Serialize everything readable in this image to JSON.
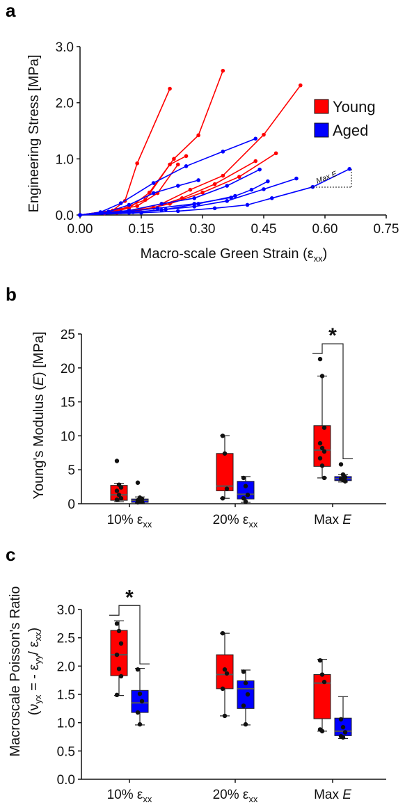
{
  "colors": {
    "young": "#ff0000",
    "aged": "#0000ff",
    "axis": "#111111",
    "median": "#555555"
  },
  "panels": {
    "a": {
      "letter": "a"
    },
    "b": {
      "letter": "b"
    },
    "c": {
      "letter": "c"
    }
  },
  "chart_data": [
    {
      "id": "a",
      "type": "line",
      "xlabel_main": "Macro-scale Green Strain (ε",
      "xlabel_sub": "xx",
      "xlabel_end": ")",
      "ylabel": "Engineering Stress [MPa]",
      "xlim": [
        0,
        0.75
      ],
      "ylim": [
        0,
        3.0
      ],
      "xticks": [
        "0.00",
        "0.15",
        "0.30",
        "0.45",
        "0.60",
        "0.75"
      ],
      "yticks": [
        "0.0",
        "1.0",
        "2.0",
        "3.0"
      ],
      "legend": {
        "position": "top-right",
        "entries": [
          "Young",
          "Aged"
        ]
      },
      "annotation": "Max E",
      "series": [
        {
          "group": "Young",
          "points": [
            [
              0,
              0
            ],
            [
              0.08,
              0.08
            ],
            [
              0.11,
              0.25
            ],
            [
              0.14,
              0.92
            ],
            [
              0.22,
              2.25
            ]
          ]
        },
        {
          "group": "Young",
          "points": [
            [
              0,
              0
            ],
            [
              0.06,
              0.03
            ],
            [
              0.12,
              0.12
            ],
            [
              0.17,
              0.4
            ],
            [
              0.23,
              1.0
            ],
            [
              0.29,
              1.42
            ],
            [
              0.35,
              2.57
            ]
          ]
        },
        {
          "group": "Young",
          "points": [
            [
              0,
              0
            ],
            [
              0.1,
              0.1
            ],
            [
              0.16,
              0.27
            ],
            [
              0.22,
              0.9
            ],
            [
              0.26,
              1.05
            ]
          ]
        },
        {
          "group": "Young",
          "points": [
            [
              0,
              0
            ],
            [
              0.12,
              0.07
            ],
            [
              0.2,
              0.2
            ],
            [
              0.27,
              0.45
            ],
            [
              0.35,
              0.7
            ],
            [
              0.45,
              1.43
            ],
            [
              0.54,
              2.31
            ]
          ]
        },
        {
          "group": "Young",
          "points": [
            [
              0,
              0
            ],
            [
              0.14,
              0.07
            ],
            [
              0.22,
              0.2
            ],
            [
              0.3,
              0.4
            ],
            [
              0.39,
              0.68
            ],
            [
              0.48,
              1.1
            ]
          ]
        },
        {
          "group": "Young",
          "points": [
            [
              0,
              0
            ],
            [
              0.09,
              0.09
            ],
            [
              0.14,
              0.16
            ],
            [
              0.19,
              0.39
            ],
            [
              0.24,
              0.9
            ]
          ]
        },
        {
          "group": "Young",
          "points": [
            [
              0,
              0
            ],
            [
              0.09,
              0.04
            ],
            [
              0.18,
              0.13
            ],
            [
              0.25,
              0.3
            ],
            [
              0.33,
              0.55
            ],
            [
              0.43,
              0.96
            ]
          ]
        },
        {
          "group": "Aged",
          "points": [
            [
              0,
              0
            ],
            [
              0.05,
              0.05
            ],
            [
              0.1,
              0.21
            ],
            [
              0.18,
              0.57
            ],
            [
              0.26,
              0.87
            ],
            [
              0.35,
              1.13
            ],
            [
              0.43,
              1.36
            ]
          ]
        },
        {
          "group": "Aged",
          "points": [
            [
              0,
              0
            ],
            [
              0.07,
              0.06
            ],
            [
              0.12,
              0.18
            ],
            [
              0.18,
              0.39
            ],
            [
              0.24,
              0.52
            ],
            [
              0.29,
              0.62
            ]
          ]
        },
        {
          "group": "Aged",
          "points": [
            [
              0,
              0
            ],
            [
              0.12,
              0.08
            ],
            [
              0.2,
              0.2
            ],
            [
              0.28,
              0.3
            ],
            [
              0.36,
              0.52
            ],
            [
              0.44,
              0.81
            ]
          ]
        },
        {
          "group": "Aged",
          "points": [
            [
              0,
              0
            ],
            [
              0.1,
              0.05
            ],
            [
              0.19,
              0.12
            ],
            [
              0.28,
              0.2
            ],
            [
              0.37,
              0.31
            ],
            [
              0.42,
              0.45
            ],
            [
              0.46,
              0.6
            ]
          ]
        },
        {
          "group": "Aged",
          "points": [
            [
              0,
              0
            ],
            [
              0.12,
              0.04
            ],
            [
              0.2,
              0.09
            ],
            [
              0.28,
              0.15
            ],
            [
              0.36,
              0.25
            ],
            [
              0.45,
              0.46
            ],
            [
              0.53,
              0.65
            ]
          ]
        },
        {
          "group": "Aged",
          "points": [
            [
              0,
              0
            ],
            [
              0.15,
              0.04
            ],
            [
              0.24,
              0.07
            ],
            [
              0.33,
              0.12
            ],
            [
              0.41,
              0.18
            ],
            [
              0.47,
              0.3
            ],
            [
              0.57,
              0.5
            ],
            [
              0.66,
              0.82
            ]
          ]
        },
        {
          "group": "Aged",
          "points": [
            [
              0,
              0
            ],
            [
              0.13,
              0.05
            ],
            [
              0.21,
              0.1
            ],
            [
              0.29,
              0.2
            ],
            [
              0.38,
              0.34
            ]
          ]
        }
      ]
    },
    {
      "id": "b",
      "type": "box",
      "ylabel_pre": "Young's Modulus (",
      "ylabel_var": "E",
      "ylabel_post": ") [MPa]",
      "ylim": [
        0,
        25
      ],
      "yticks": [
        "0",
        "5",
        "10",
        "15",
        "20",
        "25"
      ],
      "groups": [
        {
          "label_main": "10% ε",
          "label_sub": "xx",
          "label_var": "",
          "young": {
            "whisker_low": 0.3,
            "q1": 0.5,
            "median": 1.3,
            "q3": 2.7,
            "whisker_high": 3.0,
            "points": [
              6.3,
              2.8,
              2.4,
              1.9,
              1.3,
              0.8,
              0.6
            ]
          },
          "aged": {
            "whisker_low": 0.1,
            "q1": 0.2,
            "median": 0.5,
            "q3": 0.7,
            "whisker_high": 1.0,
            "points": [
              3.1,
              0.9,
              0.7,
              0.5,
              0.4,
              0.3,
              0.2
            ]
          }
        },
        {
          "label_main": "20% ε",
          "label_sub": "xx",
          "label_var": "",
          "young": {
            "whisker_low": 0.8,
            "q1": 1.9,
            "median": 2.6,
            "q3": 7.4,
            "whisker_high": 10.0,
            "points": [
              10.0,
              7.4,
              2.2,
              0.8
            ]
          },
          "aged": {
            "whisker_low": 0.2,
            "q1": 0.7,
            "median": 1.4,
            "q3": 3.3,
            "whisker_high": 4.0,
            "points": [
              3.8,
              2.6,
              1.3,
              0.8,
              0.3
            ]
          }
        },
        {
          "label_main": "Max ",
          "label_sub": "",
          "label_var": "E",
          "young": {
            "whisker_low": 3.8,
            "q1": 5.5,
            "median": 7.9,
            "q3": 11.5,
            "whisker_high": 18.8,
            "points": [
              21.3,
              18.8,
              11.2,
              8.9,
              8.2,
              7.7,
              6.7,
              5.6,
              3.8
            ]
          },
          "aged": {
            "whisker_low": 3.2,
            "q1": 3.4,
            "median": 3.7,
            "q3": 4.0,
            "whisker_high": 4.3,
            "points": [
              5.8,
              4.3,
              3.9,
              3.7,
              3.5,
              3.3
            ]
          }
        }
      ],
      "significance": {
        "group_index": 2,
        "label": "*"
      }
    },
    {
      "id": "c",
      "type": "box",
      "ylabel_line1": "Macroscale Poisson's Ratio",
      "ylabel_line2": "(ν",
      "ylabel_line2_sub": "yx",
      "ylabel_line2_mid": " = - ε",
      "ylabel_line2_sub2": "yy",
      "ylabel_line2_mid2": "/ ε",
      "ylabel_line2_sub3": "xx",
      "ylabel_line2_end": ")",
      "ylim": [
        0,
        3.0
      ],
      "yticks": [
        "0.0",
        "0.5",
        "1.0",
        "1.5",
        "2.0",
        "2.5",
        "3.0"
      ],
      "groups": [
        {
          "label_main": "10% ε",
          "label_sub": "xx",
          "label_var": "",
          "young": {
            "whisker_low": 1.48,
            "q1": 1.83,
            "median": 2.2,
            "q3": 2.63,
            "whisker_high": 2.8,
            "points": [
              2.75,
              2.62,
              2.4,
              2.2,
              1.95,
              1.82,
              1.49
            ]
          },
          "aged": {
            "whisker_low": 0.96,
            "q1": 1.18,
            "median": 1.35,
            "q3": 1.57,
            "whisker_high": 1.96,
            "points": [
              1.94,
              1.51,
              1.38,
              1.18,
              0.97
            ]
          }
        },
        {
          "label_main": "20% ε",
          "label_sub": "xx",
          "label_var": "",
          "young": {
            "whisker_low": 1.12,
            "q1": 1.6,
            "median": 1.85,
            "q3": 2.2,
            "whisker_high": 2.58,
            "points": [
              2.58,
              1.94,
              1.87,
              1.6,
              1.12
            ]
          },
          "aged": {
            "whisker_low": 0.96,
            "q1": 1.25,
            "median": 1.6,
            "q3": 1.74,
            "whisker_high": 1.93,
            "points": [
              1.9,
              1.7,
              1.5,
              1.3,
              0.97
            ]
          }
        },
        {
          "label_main": "Max ",
          "label_sub": "",
          "label_var": "E",
          "young": {
            "whisker_low": 0.85,
            "q1": 1.07,
            "median": 1.7,
            "q3": 1.85,
            "whisker_high": 2.12,
            "points": [
              2.1,
              1.85,
              1.72,
              0.88,
              0.85
            ]
          },
          "aged": {
            "whisker_low": 0.72,
            "q1": 0.77,
            "median": 0.85,
            "q3": 1.08,
            "whisker_high": 1.46,
            "points": [
              1.06,
              0.92,
              0.83,
              0.76,
              0.74
            ]
          }
        }
      ],
      "significance": {
        "group_index": 0,
        "label": "*"
      }
    }
  ]
}
